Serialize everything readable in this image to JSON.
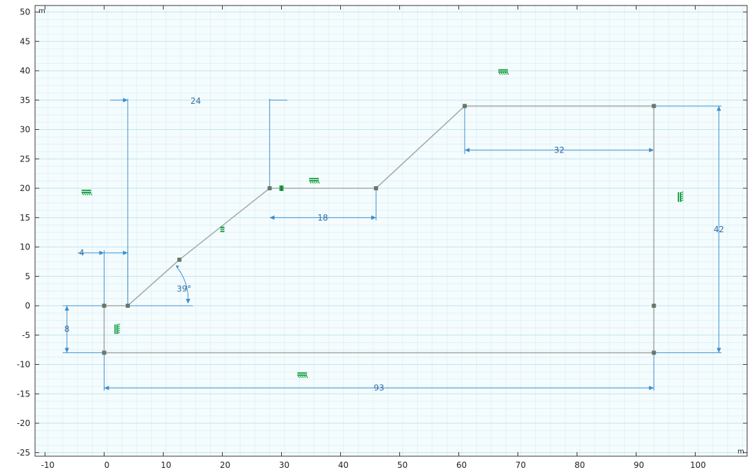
{
  "axes": {
    "x_unit": "m",
    "y_unit": "m",
    "xlim": [
      -12,
      108
    ],
    "ylim": [
      -25.5,
      51
    ],
    "x_ticks": [
      -10,
      0,
      10,
      20,
      30,
      40,
      50,
      60,
      70,
      80,
      90,
      100
    ],
    "y_ticks": [
      -25,
      -20,
      -15,
      -10,
      -5,
      0,
      5,
      10,
      15,
      20,
      25,
      30,
      35,
      40,
      45,
      50
    ],
    "grid": true
  },
  "colors": {
    "grid_major": "#bfe4ef",
    "grid_minor": "#dff2f7",
    "background": "#f5fcfe",
    "geometry": "#a6aaa6",
    "vertex": "#6b766b",
    "dimension": "#3a8fd0",
    "dimension_text": "#2e6da4",
    "constraint": "#1fa24a"
  },
  "geometry": {
    "polygon": [
      [
        0,
        0
      ],
      [
        4,
        0
      ],
      [
        12.73,
        7.83
      ],
      [
        28,
        20
      ],
      [
        46,
        20
      ],
      [
        61,
        34
      ],
      [
        93,
        34
      ],
      [
        93,
        0
      ],
      [
        93,
        -8
      ],
      [
        0,
        -8
      ]
    ],
    "vertices": [
      [
        0,
        0
      ],
      [
        4,
        0
      ],
      [
        12.73,
        7.83
      ],
      [
        28,
        20
      ],
      [
        46,
        20
      ],
      [
        61,
        34
      ],
      [
        93,
        34
      ],
      [
        93,
        0
      ],
      [
        93,
        -8
      ],
      [
        0,
        -8
      ]
    ]
  },
  "dimensions": [
    {
      "id": "dim-24",
      "label": "24"
    },
    {
      "id": "dim-4",
      "label": "4"
    },
    {
      "id": "dim-18",
      "label": "18"
    },
    {
      "id": "dim-32",
      "label": "32"
    },
    {
      "id": "dim-42",
      "label": "42"
    },
    {
      "id": "dim-8",
      "label": "8"
    },
    {
      "id": "dim-93",
      "label": "93"
    },
    {
      "id": "dim-angle",
      "label": "39°"
    }
  ],
  "constraints": [
    {
      "type": "horizontal",
      "pos": [
        -3,
        19.3
      ]
    },
    {
      "type": "horizontal",
      "pos": [
        35.5,
        21.3
      ]
    },
    {
      "type": "horizontal",
      "pos": [
        67.5,
        39.8
      ]
    },
    {
      "type": "horizontal",
      "pos": [
        33.5,
        -11.8
      ]
    },
    {
      "type": "vertical",
      "pos": [
        2.2,
        -4
      ]
    },
    {
      "type": "vertical",
      "pos": [
        97.5,
        18.5
      ]
    },
    {
      "type": "parallel",
      "pos": [
        20,
        13
      ]
    },
    {
      "type": "coincident",
      "pos": [
        30,
        20
      ]
    }
  ]
}
